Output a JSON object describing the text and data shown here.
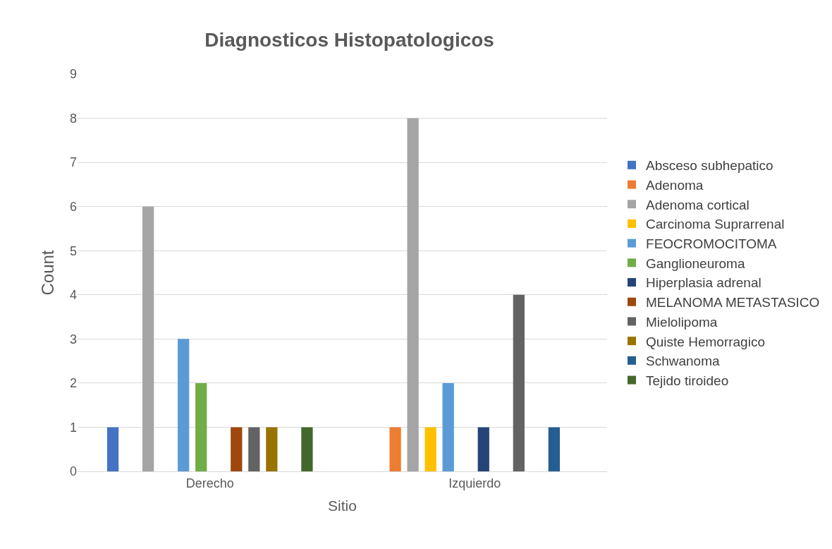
{
  "chart_data": {
    "type": "bar",
    "title": "Diagnosticos Histopatologicos",
    "xlabel": "Sitio",
    "ylabel": "Count",
    "categories": [
      "Derecho",
      "Izquierdo"
    ],
    "series": [
      {
        "name": "Absceso subhepatico",
        "color": "#4472c4",
        "values": [
          1,
          null
        ]
      },
      {
        "name": "Adenoma",
        "color": "#ed7d31",
        "values": [
          null,
          1
        ]
      },
      {
        "name": "Adenoma cortical",
        "color": "#a5a5a5",
        "values": [
          6,
          8
        ]
      },
      {
        "name": "Carcinoma Suprarrenal",
        "color": "#ffc000",
        "values": [
          null,
          1
        ]
      },
      {
        "name": "FEOCROMOCITOMA",
        "color": "#5b9bd5",
        "values": [
          3,
          2
        ]
      },
      {
        "name": "Ganglioneuroma",
        "color": "#70ad47",
        "values": [
          2,
          null
        ]
      },
      {
        "name": "Hiperplasia adrenal",
        "color": "#264478",
        "values": [
          null,
          1
        ]
      },
      {
        "name": "MELANOMA METASTASICO",
        "color": "#9e480e",
        "values": [
          1,
          null
        ]
      },
      {
        "name": "Mielolipoma",
        "color": "#636363",
        "values": [
          1,
          4
        ]
      },
      {
        "name": "Quiste Hemorragico",
        "color": "#997300",
        "values": [
          1,
          null
        ]
      },
      {
        "name": "Schwanoma",
        "color": "#255e91",
        "values": [
          null,
          1
        ]
      },
      {
        "name": "Tejido tiroideo",
        "color": "#43682b",
        "values": [
          1,
          null
        ]
      }
    ],
    "ylim": [
      0,
      9
    ],
    "yticks": [
      0,
      1,
      2,
      3,
      4,
      5,
      6,
      7,
      8,
      9
    ],
    "grid": "y",
    "legend": "right"
  }
}
